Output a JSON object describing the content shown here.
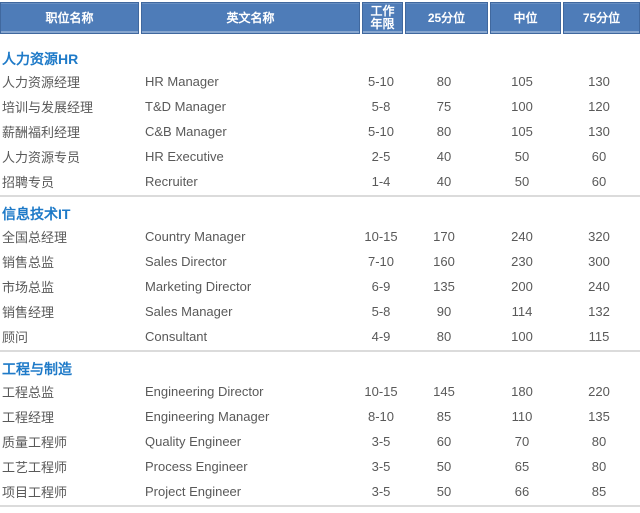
{
  "colors": {
    "header_bg": "#4E7CB8",
    "header_border": "#40689E",
    "header_text": "#FFFFFF",
    "section_title_color": "#1E7AC8",
    "body_text": "#595959",
    "divider_color": "#DBDBDB",
    "page_bg": "#FFFFFF"
  },
  "table": {
    "columns": [
      {
        "label": "职位名称"
      },
      {
        "label": "英文名称"
      },
      {
        "label": "工作年限"
      },
      {
        "label": "25分位"
      },
      {
        "label": "中位"
      },
      {
        "label": "75分位"
      }
    ],
    "sections": [
      {
        "title": "人力资源HR",
        "rows": [
          [
            "人力资源经理",
            "HR Manager",
            "5-10",
            "80",
            "105",
            "130"
          ],
          [
            "培训与发展经理",
            "T&D Manager",
            "5-8",
            "75",
            "100",
            "120"
          ],
          [
            "薪酬福利经理",
            "C&B Manager",
            "5-10",
            "80",
            "105",
            "130"
          ],
          [
            "人力资源专员",
            "HR Executive",
            "2-5",
            "40",
            "50",
            "60"
          ],
          [
            "招聘专员",
            "Recruiter",
            "1-4",
            "40",
            "50",
            "60"
          ]
        ]
      },
      {
        "title": "信息技术IT",
        "rows": [
          [
            "全国总经理",
            "Country Manager",
            "10-15",
            "170",
            "240",
            "320"
          ],
          [
            "销售总监",
            "Sales Director",
            "7-10",
            "160",
            "230",
            "300"
          ],
          [
            "市场总监",
            "Marketing Director",
            "6-9",
            "135",
            "200",
            "240"
          ],
          [
            "销售经理",
            "Sales Manager",
            "5-8",
            "90",
            "114",
            "132"
          ],
          [
            "顾问",
            "Consultant",
            "4-9",
            "80",
            "100",
            "115"
          ]
        ]
      },
      {
        "title": "工程与制造",
        "rows": [
          [
            "工程总监",
            "Engineering Director",
            "10-15",
            "145",
            "180",
            "220"
          ],
          [
            "工程经理",
            "Engineering Manager",
            "8-10",
            "85",
            "110",
            "135"
          ],
          [
            "质量工程师",
            "Quality Engineer",
            "3-5",
            "60",
            "70",
            "80"
          ],
          [
            "工艺工程师",
            "Process Engineer",
            "3-5",
            "50",
            "65",
            "80"
          ],
          [
            "项目工程师",
            "Project Engineer",
            "3-5",
            "50",
            "66",
            "85"
          ]
        ]
      }
    ]
  }
}
